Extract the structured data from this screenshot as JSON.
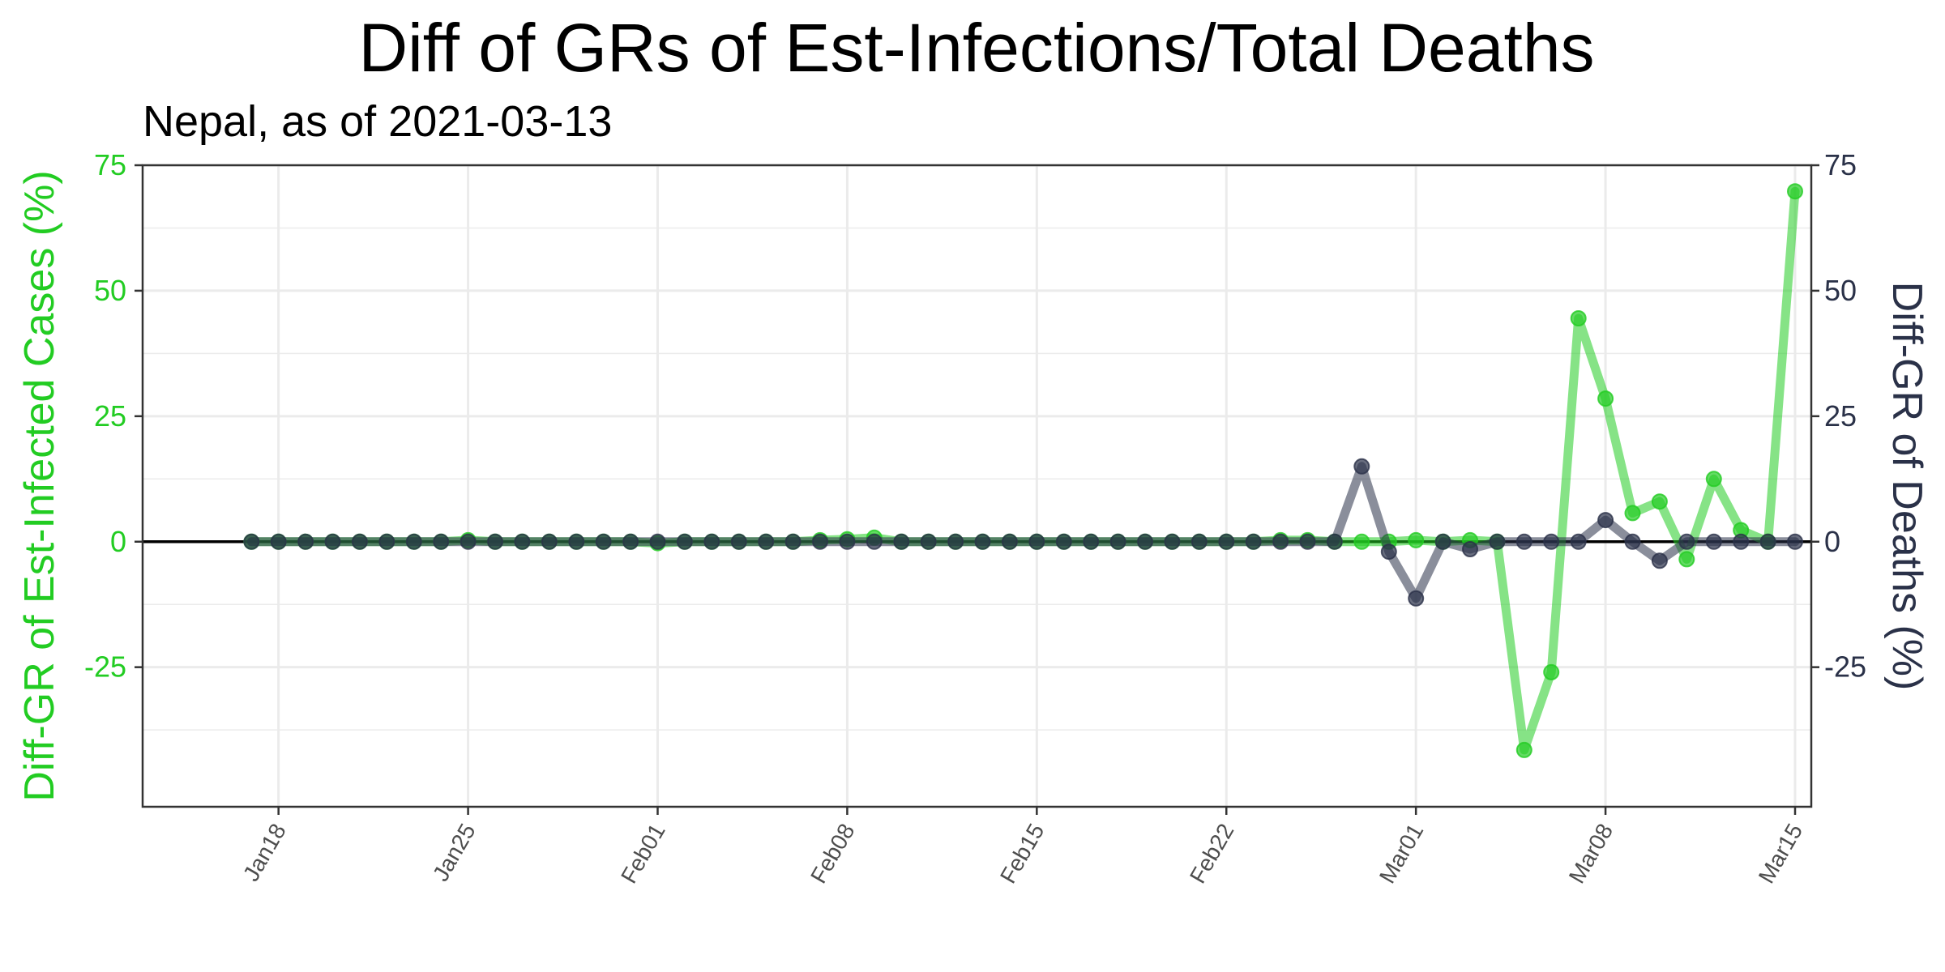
{
  "chart_data": {
    "type": "line",
    "title": "Diff of GRs of Est-Infections/Total Deaths",
    "subtitle": "Nepal, as of 2021-03-13",
    "ylabel_left": "Diff-GR of Est-Infected Cases (%)",
    "ylabel_right": "Diff-GR of Deaths (%)",
    "xlabel": "",
    "x_ticks": [
      "Jan18",
      "Jan25",
      "Feb01",
      "Feb08",
      "Feb15",
      "Feb22",
      "Mar01",
      "Mar08",
      "Mar15"
    ],
    "x_tick_dates": [
      "2021-01-18",
      "2021-01-25",
      "2021-02-01",
      "2021-02-08",
      "2021-02-15",
      "2021-02-22",
      "2021-03-01",
      "2021-03-08",
      "2021-03-15"
    ],
    "y_ticks_left": [
      "75",
      "50",
      "25",
      "0",
      "-25"
    ],
    "y_ticks_right": [
      "75",
      "50",
      "25",
      "0",
      "-25"
    ],
    "y_tick_values": [
      75,
      50,
      25,
      0,
      -25
    ],
    "ylim": [
      -47,
      75
    ],
    "xlim": [
      "2021-01-14",
      "2021-03-15"
    ],
    "grid": true,
    "zero_line": true,
    "series": [
      {
        "color": "#22cc22",
        "axis": "left",
        "x_start": "2021-01-17",
        "values": [
          0.0,
          0.0,
          0.0,
          0.0,
          0.0,
          0.0,
          0.0,
          0.0,
          0.3,
          0.0,
          0.0,
          0.0,
          0.0,
          0.0,
          0.0,
          -0.3,
          0.0,
          0.0,
          0.0,
          0.0,
          0.0,
          0.3,
          0.5,
          0.8,
          0.0,
          0.0,
          0.0,
          0.0,
          0.0,
          0.0,
          0.0,
          0.0,
          0.0,
          0.0,
          0.0,
          0.0,
          0.0,
          0.0,
          0.3,
          0.3,
          0.0,
          0.0,
          0.0,
          0.3,
          0.0,
          0.3,
          0.0,
          -41.5,
          -26.0,
          44.5,
          28.5,
          5.7,
          8.0,
          -3.5,
          12.5,
          2.3,
          0.0,
          69.8
        ]
      },
      {
        "color": "#2a3148",
        "axis": "right",
        "x_start": "2021-01-17",
        "values": [
          0.0,
          0.0,
          0.0,
          0.0,
          0.0,
          0.0,
          0.0,
          0.0,
          0.0,
          0.0,
          0.0,
          0.0,
          0.0,
          0.0,
          0.0,
          0.0,
          0.0,
          0.0,
          0.0,
          0.0,
          0.0,
          0.0,
          0.0,
          0.0,
          0.0,
          0.0,
          0.0,
          0.0,
          0.0,
          0.0,
          0.0,
          0.0,
          0.0,
          0.0,
          0.0,
          0.0,
          0.0,
          0.0,
          0.0,
          0.0,
          0.0,
          15.0,
          -2.0,
          -11.3,
          0.0,
          -1.5,
          0.0,
          0.0,
          0.0,
          0.0,
          4.3,
          0.0,
          -3.8,
          0.0,
          0.0,
          0.0,
          0.0,
          0.0
        ]
      }
    ],
    "colors": {
      "left_axis_text": "#22cc22",
      "right_axis_text": "#2a3148",
      "grid": "#ebebeb",
      "panel_border": "#333333",
      "zero_line": "#000000"
    }
  }
}
